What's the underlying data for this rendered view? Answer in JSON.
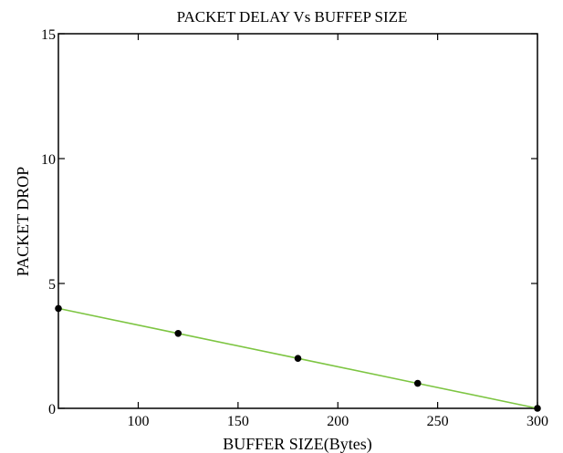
{
  "chart_data": {
    "type": "line",
    "title": "PACKET DELAY  Vs  BUFFEP SIZE",
    "xlabel": "BUFFER SIZE(Bytes)",
    "ylabel": "PACKET DROP",
    "xlim": [
      60,
      300
    ],
    "ylim": [
      0,
      15
    ],
    "x_ticks": [
      100,
      150,
      200,
      250,
      300
    ],
    "x_tick_labels": [
      "100",
      "150",
      "200",
      "250",
      "300"
    ],
    "y_ticks": [
      0,
      5,
      10,
      15
    ],
    "y_tick_labels": [
      "0",
      "5",
      "10",
      "15"
    ],
    "grid": false,
    "legend": "none",
    "series": [
      {
        "x": [
          60,
          120,
          180,
          240,
          300
        ],
        "y": [
          4,
          3,
          2,
          1,
          0
        ],
        "line_color": "#7dc542",
        "marker_color": "#000000"
      }
    ]
  }
}
